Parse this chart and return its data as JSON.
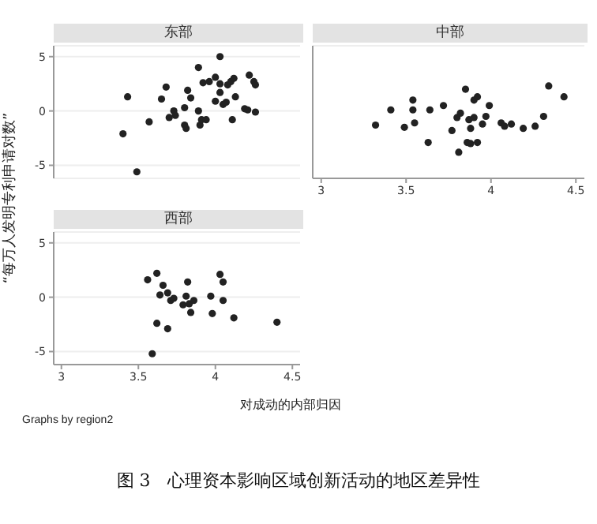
{
  "chart_data": [
    {
      "type": "scatter",
      "title": "东部",
      "ylabel": "“每万人发明专利申请对数”",
      "xlim": [
        2.95,
        4.55
      ],
      "ylim": [
        -6.2,
        6
      ],
      "xticks": [
        3,
        3.5,
        4,
        4.5
      ],
      "yticks": [
        -5,
        0,
        5
      ],
      "grid": "y",
      "marker": "circle",
      "tick_labels": "y",
      "legend": false,
      "series": [
        {
          "color": "#222222",
          "x": [
            3.4,
            3.43,
            3.49,
            3.57,
            3.65,
            3.68,
            3.7,
            3.73,
            3.74,
            3.8,
            3.8,
            3.81,
            3.82,
            3.84,
            3.89,
            3.89,
            3.9,
            3.91,
            3.92,
            3.94,
            3.96,
            4.0,
            4.0,
            4.03,
            4.03,
            4.03,
            4.05,
            4.07,
            4.08,
            4.1,
            4.12,
            4.11,
            4.13,
            4.19,
            4.21,
            4.22,
            4.25,
            4.26,
            4.26
          ],
          "values": [
            -2.1,
            1.3,
            -5.6,
            -1.0,
            1.1,
            2.2,
            -0.6,
            0,
            -0.4,
            0.3,
            -1.3,
            -1.6,
            1.9,
            1.2,
            0,
            4.0,
            -1.3,
            -0.8,
            2.6,
            -0.8,
            2.7,
            3.1,
            0.9,
            2.5,
            5.0,
            1.7,
            0.6,
            0.8,
            2.4,
            2.7,
            3.0,
            -0.8,
            1.3,
            0.2,
            0.1,
            3.3,
            2.7,
            2.4,
            -0.1
          ]
        }
      ]
    },
    {
      "type": "scatter",
      "title": "中部",
      "xlim": [
        2.95,
        4.55
      ],
      "ylim": [
        -6.2,
        6
      ],
      "xticks": [
        3,
        3.5,
        4,
        4.5
      ],
      "yticks": [
        -5,
        0,
        5
      ],
      "grid": "y",
      "marker": "circle",
      "tick_labels": "x",
      "legend": false,
      "series": [
        {
          "color": "#222222",
          "x": [
            3.32,
            3.41,
            3.49,
            3.54,
            3.54,
            3.55,
            3.63,
            3.64,
            3.72,
            3.77,
            3.8,
            3.81,
            3.82,
            3.85,
            3.86,
            3.87,
            3.88,
            3.88,
            3.9,
            3.9,
            3.92,
            3.92,
            3.95,
            3.97,
            3.99,
            4.06,
            4.08,
            4.12,
            4.19,
            4.26,
            4.31,
            4.34,
            4.43
          ],
          "values": [
            -1.3,
            0.1,
            -1.5,
            1.0,
            0.1,
            -1.1,
            -2.9,
            0.1,
            0.5,
            -1.8,
            -0.6,
            -3.8,
            -0.2,
            2.0,
            -2.9,
            -0.8,
            -1.6,
            -3.0,
            -0.6,
            1.0,
            -2.9,
            1.3,
            -1.2,
            -0.5,
            0.5,
            -1.1,
            -1.4,
            -1.2,
            -1.6,
            -1.4,
            -0.5,
            2.3,
            1.3
          ]
        }
      ]
    },
    {
      "type": "scatter",
      "title": "西部",
      "xlabel": "对成动的内部归因",
      "xlim": [
        2.95,
        4.55
      ],
      "ylim": [
        -6.2,
        6
      ],
      "xticks": [
        3,
        3.5,
        4,
        4.5
      ],
      "yticks": [
        -5,
        0,
        5
      ],
      "grid": "y",
      "marker": "circle",
      "legend": false,
      "annotations": [
        "Graphs by region2",
        "图 3　心理资本影响区域创新活动的地区差异性"
      ],
      "series": [
        {
          "color": "#222222",
          "x": [
            3.56,
            3.62,
            3.62,
            3.64,
            3.66,
            3.69,
            3.69,
            3.71,
            3.73,
            3.59,
            3.81,
            3.82,
            3.79,
            3.83,
            3.84,
            3.86,
            3.97,
            3.98,
            4.03,
            4.05,
            4.05,
            4.12,
            4.4
          ],
          "values": [
            1.6,
            2.2,
            -2.4,
            0.2,
            1.1,
            0.4,
            -2.9,
            -0.3,
            -0.1,
            -5.2,
            0.1,
            1.4,
            -0.7,
            -0.6,
            -1.4,
            -0.3,
            0.1,
            -1.5,
            2.1,
            1.4,
            -0.3,
            -1.9,
            -2.3
          ]
        }
      ]
    }
  ]
}
